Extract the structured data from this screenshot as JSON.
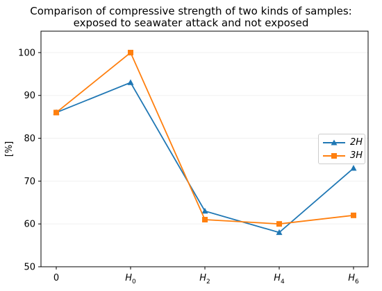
{
  "chart_data": {
    "type": "line",
    "title": "Comparison of compressive strength of two kinds of samples: exposed to seawater attack and not exposed",
    "title_lines": [
      "Comparison of compressive strength of two kinds of samples:",
      "exposed to seawater attack and not exposed"
    ],
    "ylabel": "[%]",
    "xlabel": "",
    "categories": [
      {
        "base": "0",
        "sub": ""
      },
      {
        "base": "H",
        "sub": "0"
      },
      {
        "base": "H",
        "sub": "2"
      },
      {
        "base": "H",
        "sub": "4"
      },
      {
        "base": "H",
        "sub": "6"
      }
    ],
    "ylim": [
      50,
      105
    ],
    "yticks": [
      50,
      60,
      70,
      80,
      90,
      100
    ],
    "grid": true,
    "legend": "right",
    "series": [
      {
        "name": "2H",
        "color": "#1f77b4",
        "marker": "triangle",
        "values": [
          86,
          93,
          63,
          58,
          73
        ]
      },
      {
        "name": "3H",
        "color": "#ff7f0e",
        "marker": "square",
        "values": [
          86,
          100,
          61,
          60,
          62
        ]
      }
    ]
  }
}
